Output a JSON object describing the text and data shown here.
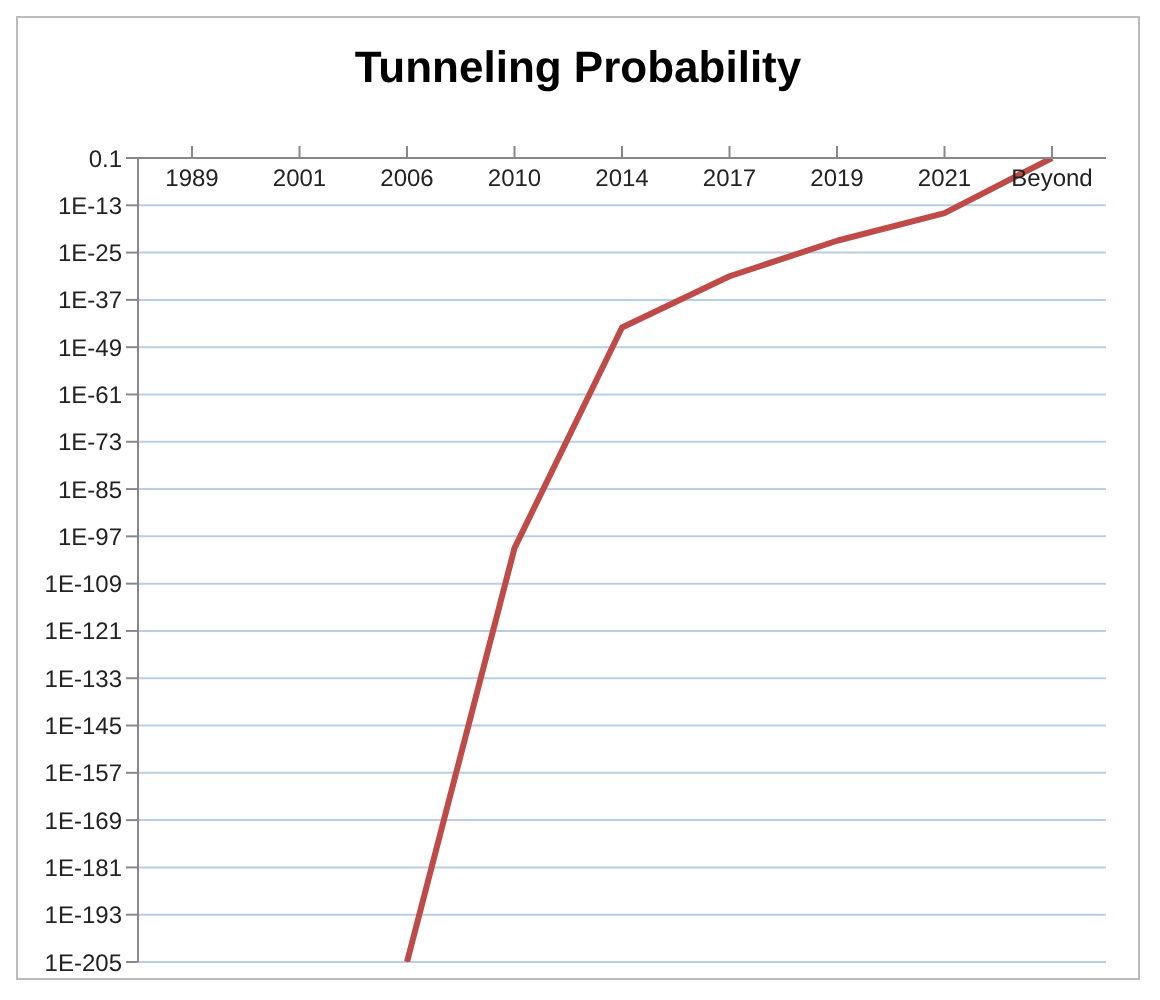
{
  "chart_data": {
    "type": "line",
    "title": "Tunneling Probability",
    "categories": [
      "1989",
      "2001",
      "2006",
      "2010",
      "2014",
      "2017",
      "2019",
      "2021",
      "Beyond"
    ],
    "series": [
      {
        "color": "#be4b48",
        "values": [
          null,
          null,
          1e-205,
          1e-100,
          1e-44,
          1e-31,
          1e-22,
          1e-15,
          0.1
        ]
      }
    ],
    "log": "y",
    "ylim": [
      1e-205,
      0.1
    ],
    "yticks": [
      0.1,
      {
        "value": 1e-13,
        "label": "1E-13"
      },
      {
        "value": 1e-25,
        "label": "1E-25"
      },
      {
        "value": 1e-37,
        "label": "1E-37"
      },
      {
        "value": 1e-49,
        "label": "1E-49"
      },
      {
        "value": 1e-61,
        "label": "1E-61"
      },
      {
        "value": 1e-73,
        "label": "1E-73"
      },
      {
        "value": 1e-85,
        "label": "1E-85"
      },
      {
        "value": 1e-97,
        "label": "1E-97"
      },
      {
        "value": 1e-109,
        "label": "1E-109"
      },
      {
        "value": 1e-121,
        "label": "1E-121"
      },
      {
        "value": 1e-133,
        "label": "1E-133"
      },
      {
        "value": 1e-145,
        "label": "1E-145"
      },
      {
        "value": 1e-157,
        "label": "1E-157"
      },
      {
        "value": 1e-169,
        "label": "1E-169"
      },
      {
        "value": 1e-181,
        "label": "1E-181"
      },
      {
        "value": 1e-193,
        "label": "1E-193"
      },
      {
        "value": 1e-205,
        "label": "1E-205"
      }
    ],
    "grid": "y",
    "marker": "none",
    "line_style": "solid",
    "legend": false
  }
}
